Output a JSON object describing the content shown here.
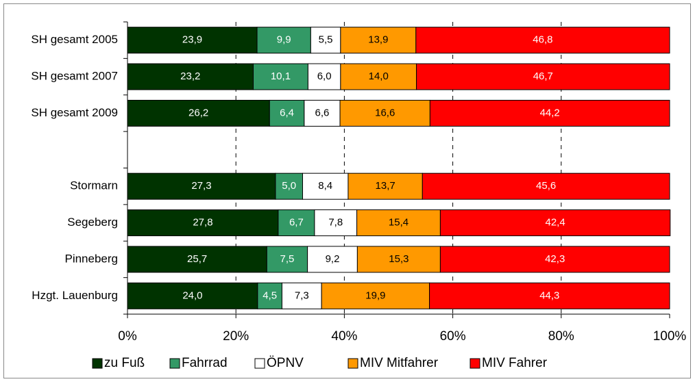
{
  "chart_data": {
    "type": "stacked-bar-horizontal",
    "categories": [
      "SH gesamt 2005",
      "SH gesamt 2007",
      "SH gesamt 2009",
      null,
      "Stormarn",
      "Segeberg",
      "Pinneberg",
      "Hzgt. Lauenburg"
    ],
    "series": [
      {
        "name": "zu Fuß",
        "color": "#003300",
        "label_color": "#ffffff",
        "values": [
          23.9,
          23.2,
          26.2,
          null,
          27.3,
          27.8,
          25.7,
          24.0
        ],
        "value_labels": [
          "23,9",
          "23,2",
          "26,2",
          null,
          "27,3",
          "27,8",
          "25,7",
          "24,0"
        ]
      },
      {
        "name": "Fahrrad",
        "color": "#339966",
        "label_color": "#ffffff",
        "values": [
          9.9,
          10.1,
          6.4,
          null,
          5.0,
          6.7,
          7.5,
          4.5
        ],
        "value_labels": [
          "9,9",
          "10,1",
          "6,4",
          null,
          "5,0",
          "6,7",
          "7,5",
          "4,5"
        ]
      },
      {
        "name": "ÖPNV",
        "color": "#ffffff",
        "label_color": "#000000",
        "values": [
          5.5,
          6.0,
          6.6,
          null,
          8.4,
          7.8,
          9.2,
          7.3
        ],
        "value_labels": [
          "5,5",
          "6,0",
          "6,6",
          null,
          "8,4",
          "7,8",
          "9,2",
          "7,3"
        ]
      },
      {
        "name": "MIV Mitfahrer",
        "color": "#ff9900",
        "label_color": "#000000",
        "values": [
          13.9,
          14.0,
          16.6,
          null,
          13.7,
          15.4,
          15.3,
          19.9
        ],
        "value_labels": [
          "13,9",
          "14,0",
          "16,6",
          null,
          "13,7",
          "15,4",
          "15,3",
          "19,9"
        ]
      },
      {
        "name": "MIV Fahrer",
        "color": "#ff0000",
        "label_color": "#ffffff",
        "values": [
          46.8,
          46.7,
          44.2,
          null,
          45.6,
          42.4,
          42.3,
          44.3
        ],
        "value_labels": [
          "46,8",
          "46,7",
          "44,2",
          null,
          "45,6",
          "42,4",
          "42,3",
          "44,3"
        ]
      }
    ],
    "xlim": [
      0,
      100
    ],
    "xticks": [
      {
        "value": 0,
        "label": "0%"
      },
      {
        "value": 20,
        "label": "20%"
      },
      {
        "value": 40,
        "label": "40%"
      },
      {
        "value": 60,
        "label": "60%"
      },
      {
        "value": 80,
        "label": "80%"
      },
      {
        "value": 100,
        "label": "100%"
      }
    ],
    "grid": true,
    "legend": "bottom"
  }
}
